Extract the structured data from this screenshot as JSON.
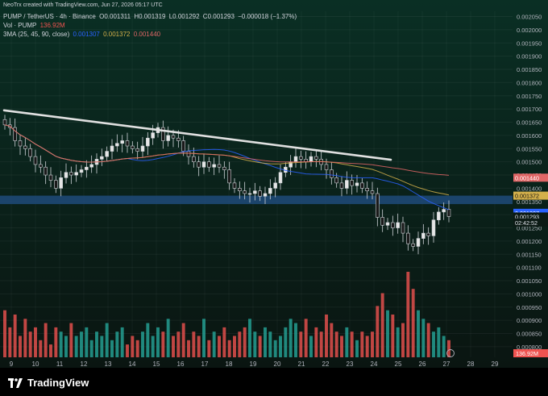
{
  "header": {
    "created_line": "NeoTrx created with TradingView.com, Jun 27, 2026 05:17 UTC",
    "symbol_line": "PUMP / TetherUS · 4h · Binance",
    "ohlc": {
      "o": "O0.001311",
      "h": "H0.001319",
      "l": "L0.001292",
      "c": "C0.001293",
      "change": "−0.000018 (−1.37%)"
    },
    "vol_label": "Vol · PUMP",
    "vol_value": "136.92M",
    "sma_label": "3MA (25, 45, 90, close)",
    "sma_values": [
      "0.001307",
      "0.001372",
      "0.001440"
    ]
  },
  "colors": {
    "background": "#0c1a15",
    "up": "#26a69a",
    "down": "#ef5350",
    "candle_up": "#e6e6e6",
    "candle_down": "#1a1a1a",
    "sma25": "#2962ff",
    "sma45": "#d4b04b",
    "sma90": "#e06666",
    "trendline": "#e0e0e0",
    "support_band": "#1e4a7a"
  },
  "brand": {
    "name": "TradingView",
    "icon": "tradingview-logo-icon"
  },
  "chart_data": {
    "type": "candlestick",
    "timeframe": "4h",
    "x_ticks": [
      "9",
      "10",
      "11",
      "12",
      "13",
      "14",
      "15",
      "16",
      "17",
      "18",
      "19",
      "20",
      "21",
      "22",
      "23",
      "24",
      "25",
      "26",
      "27",
      "28",
      "29"
    ],
    "y_ticks": [
      "0.002050",
      "0.002000",
      "0.001950",
      "0.001900",
      "0.001850",
      "0.001800",
      "0.001750",
      "0.001700",
      "0.001650",
      "0.001600",
      "0.001550",
      "0.001500",
      "0.001450",
      "0.001400",
      "0.001350",
      "0.001300",
      "0.001250",
      "0.001200",
      "0.001150",
      "0.001100",
      "0.001050",
      "0.001000",
      "0.000950",
      "0.000900",
      "0.000850",
      "0.000800"
    ],
    "ylim": [
      0.00076,
      0.00207
    ],
    "price_badges": [
      {
        "label": "0.001440",
        "value": 0.00144,
        "color": "#e06666"
      },
      {
        "label": "0.001372",
        "value": 0.001372,
        "color": "#d4b04b"
      },
      {
        "label": "0.001307",
        "value": 0.001307,
        "color": "#2962ff"
      },
      {
        "label": "0.001293",
        "value": 0.001293,
        "color": "#0c1a15"
      },
      {
        "label": "02:42:52",
        "value": 0.00127,
        "color": "#0c1a15"
      }
    ],
    "volume_badge": "136.92M",
    "close_prices": [
      0.00164,
      0.00163,
      0.00158,
      0.00156,
      0.00155,
      0.00152,
      0.00149,
      0.00148,
      0.00145,
      0.00143,
      0.0014,
      0.00144,
      0.00146,
      0.00145,
      0.00146,
      0.00147,
      0.00148,
      0.00149,
      0.00151,
      0.00152,
      0.00154,
      0.00156,
      0.00157,
      0.00158,
      0.00156,
      0.00155,
      0.00154,
      0.00156,
      0.00159,
      0.00161,
      0.00163,
      0.00158,
      0.0016,
      0.00159,
      0.00158,
      0.00154,
      0.00152,
      0.0015,
      0.00148,
      0.0015,
      0.00148,
      0.00149,
      0.00148,
      0.00147,
      0.00142,
      0.0014,
      0.00139,
      0.00138,
      0.00138,
      0.00139,
      0.00137,
      0.00138,
      0.0014,
      0.00142,
      0.00146,
      0.00148,
      0.0015,
      0.00152,
      0.00151,
      0.0015,
      0.00152,
      0.00151,
      0.00149,
      0.00147,
      0.00144,
      0.00142,
      0.0014,
      0.00143,
      0.00141,
      0.00142,
      0.0014,
      0.00139,
      0.00138,
      0.00129,
      0.00126,
      0.00127,
      0.00125,
      0.00127,
      0.00123,
      0.00119,
      0.00118,
      0.00121,
      0.00123,
      0.00122,
      0.00128,
      0.00131,
      0.00132,
      0.001293
    ],
    "volumes": [
      0.55,
      0.35,
      0.5,
      0.25,
      0.45,
      0.3,
      0.35,
      0.2,
      0.4,
      0.15,
      0.35,
      0.3,
      0.25,
      0.4,
      0.25,
      0.3,
      0.35,
      0.2,
      0.3,
      0.25,
      0.4,
      0.2,
      0.3,
      0.35,
      0.15,
      0.25,
      0.2,
      0.3,
      0.4,
      0.25,
      0.35,
      0.3,
      0.45,
      0.25,
      0.3,
      0.4,
      0.2,
      0.3,
      0.25,
      0.45,
      0.2,
      0.3,
      0.25,
      0.35,
      0.2,
      0.25,
      0.3,
      0.35,
      0.45,
      0.3,
      0.25,
      0.35,
      0.3,
      0.2,
      0.25,
      0.35,
      0.45,
      0.4,
      0.3,
      0.45,
      0.25,
      0.35,
      0.3,
      0.5,
      0.4,
      0.3,
      0.25,
      0.35,
      0.3,
      0.2,
      0.3,
      0.25,
      0.3,
      0.6,
      0.75,
      0.55,
      0.5,
      0.35,
      0.4,
      1.0,
      0.8,
      0.55,
      0.45,
      0.4,
      0.3,
      0.35,
      0.25,
      0.2
    ]
  }
}
